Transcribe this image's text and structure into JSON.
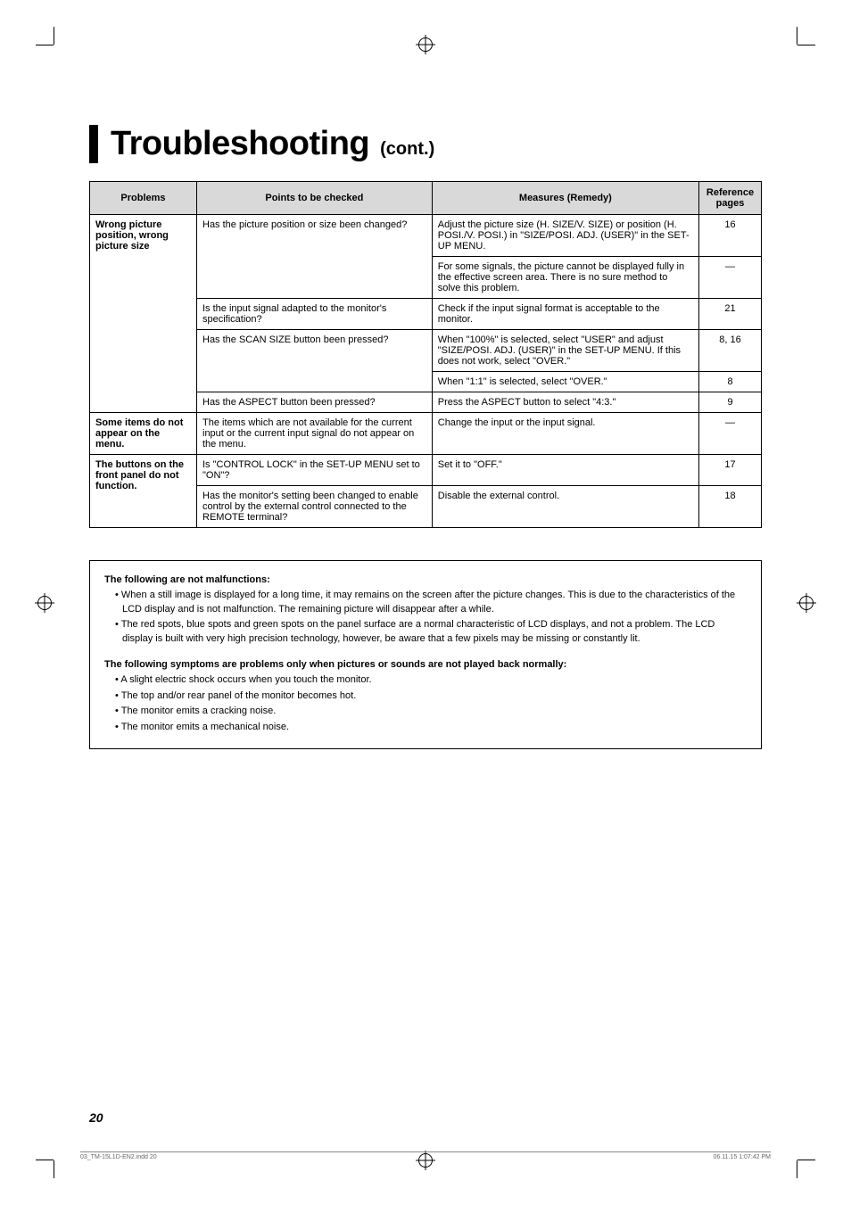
{
  "title": {
    "main": "Troubleshooting",
    "sub": "(cont.)"
  },
  "table": {
    "headers": [
      "Problems",
      "Points to be checked",
      "Measures (Remedy)",
      "Reference pages"
    ],
    "rows": [
      {
        "problem": "Wrong picture position, wrong picture size",
        "point": "Has the picture position or size been changed?",
        "measure": "Adjust the picture size (H. SIZE/V. SIZE) or position (H. POSI./V. POSI.) in \"SIZE/POSI. ADJ. (USER)\" in the SET-UP MENU.",
        "ref": "16"
      },
      {
        "problem": "",
        "point": "",
        "measure": "For some signals, the picture cannot be displayed fully in the effective screen area. There is no sure method to solve this problem.",
        "ref": "—"
      },
      {
        "problem": "",
        "point": "Is the input signal adapted to the monitor's specification?",
        "measure": "Check if the input signal format is acceptable to the monitor.",
        "ref": "21"
      },
      {
        "problem": "",
        "point": "Has the SCAN SIZE button been pressed?",
        "measure": "When \"100%\" is selected, select \"USER\" and adjust \"SIZE/POSI. ADJ. (USER)\" in the SET-UP MENU. If this does not work, select \"OVER.\"",
        "ref": "8, 16"
      },
      {
        "problem": "",
        "point": "",
        "measure": "When \"1:1\" is selected, select \"OVER.\"",
        "ref": "8"
      },
      {
        "problem": "",
        "point": "Has the ASPECT button been pressed?",
        "measure": "Press the ASPECT button to select \"4:3.\"",
        "ref": "9"
      },
      {
        "problem": "Some items do not appear on the menu.",
        "point": "The items which are not available for the current input or the current input signal do not appear on the menu.",
        "measure": "Change the input or the input signal.",
        "ref": "—"
      },
      {
        "problem": "The buttons on the front panel do not function.",
        "point": "Is \"CONTROL LOCK\" in the SET-UP MENU set to \"ON\"?",
        "measure": "Set it to \"OFF.\"",
        "ref": "17"
      },
      {
        "problem": "",
        "point": "Has the monitor's setting been changed to enable control by the external control connected to the REMOTE terminal?",
        "measure": "Disable the external control.",
        "ref": "18"
      }
    ]
  },
  "notes": {
    "heading1": "The following are not malfunctions:",
    "list1": [
      "When a still image is displayed for a long time, it may remains on the screen after the picture changes. This is due to the characteristics of the LCD display and is not malfunction. The remaining picture will disappear after a while.",
      "The red spots, blue spots and green spots on the panel surface are a normal characteristic of LCD displays, and not a problem. The LCD display is built with very high precision technology, however, be aware that a few pixels may be missing or constantly lit."
    ],
    "heading2": "The following symptoms are problems only when pictures or sounds are not played back normally:",
    "list2": [
      "A slight electric shock occurs when you touch the monitor.",
      "The top and/or rear panel of the monitor becomes hot.",
      "The monitor emits a cracking noise.",
      "The monitor emits a mechanical noise."
    ]
  },
  "pageNumber": "20",
  "footer": {
    "left": "03_TM-15L1D-EN2.indd   20",
    "right": "06.11.15   1:07:42 PM"
  }
}
